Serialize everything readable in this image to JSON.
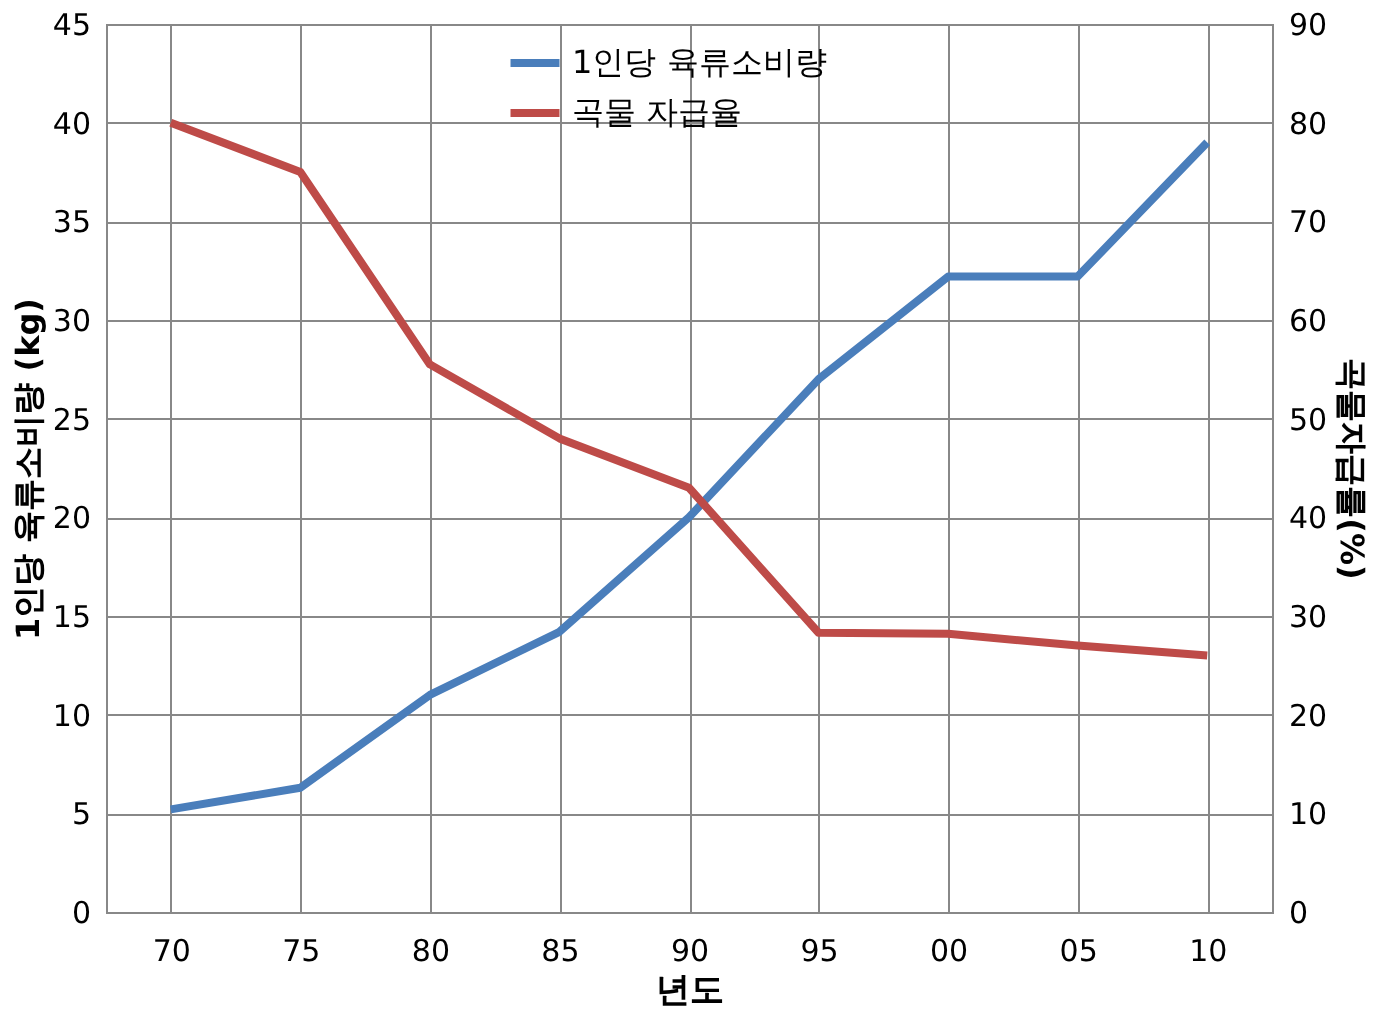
{
  "chart_data": {
    "type": "line",
    "xlabel": "년도",
    "ylabel": "1인당 육류소비량 (kg)",
    "y2label": "곡물자급률(%)",
    "categories": [
      "70",
      "75",
      "80",
      "85",
      "90",
      "95",
      "00",
      "05",
      "10"
    ],
    "series": [
      {
        "name": "1인당 육류소비량",
        "color": "#4a7ebb",
        "values": [
          5.2,
          6.3,
          11,
          14.2,
          20,
          27,
          32.2,
          32.2,
          39
        ]
      },
      {
        "name": "곡물 자급율",
        "color": "#be4b48",
        "axis": "y2",
        "values": [
          80,
          75,
          55.5,
          48,
          43,
          28.3,
          28.2,
          27,
          26
        ]
      }
    ],
    "ylim": [
      0,
      45
    ],
    "yticks": [
      0,
      5,
      10,
      15,
      20,
      25,
      30,
      35,
      40,
      45
    ],
    "y2lim": [
      0,
      90
    ],
    "y2ticks": [
      0,
      10,
      20,
      30,
      40,
      50,
      60,
      70,
      80,
      90
    ],
    "grid": true,
    "legend": "top",
    "marker": "none",
    "line_style": "solid"
  }
}
